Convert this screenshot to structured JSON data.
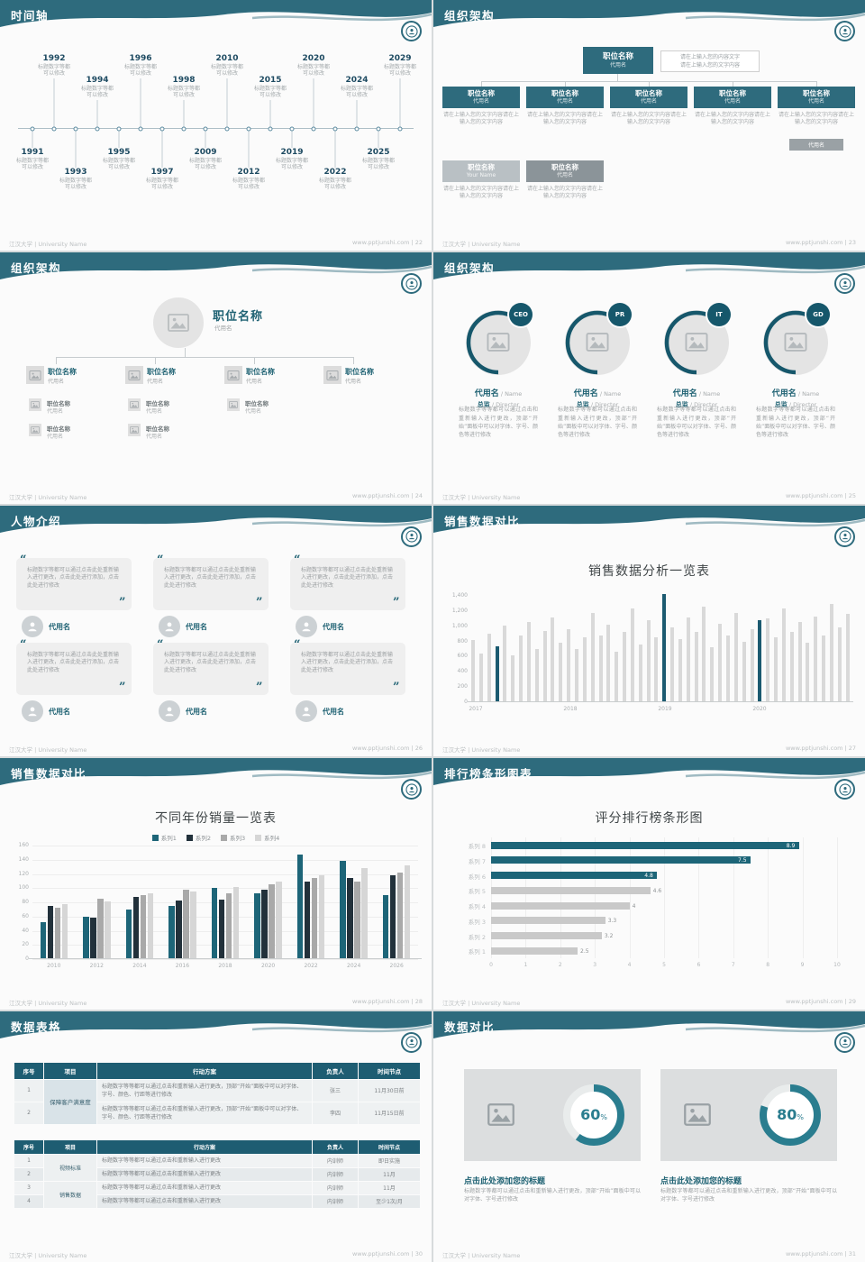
{
  "theme": {
    "header_teal": "#2e6b7d",
    "accent_teal": "#1f6273",
    "dark_navy": "#22313b",
    "gray_bar": "#d9d9d9",
    "table_header": "#1e5d72",
    "donut_teal": "#2a7d8f"
  },
  "footer": {
    "left": "江汉大学 | University Name",
    "site": "www.pptjunshi.com"
  },
  "slides": [
    {
      "id": "timeline",
      "title": "时间轴",
      "page": "22",
      "caption": "标题数字等都可以修改",
      "items": [
        {
          "year": "1991",
          "side": "below",
          "level": 1
        },
        {
          "year": "1992",
          "side": "above",
          "level": 1
        },
        {
          "year": "1993",
          "side": "below",
          "level": 2
        },
        {
          "year": "1994",
          "side": "above",
          "level": 2
        },
        {
          "year": "1995",
          "side": "below",
          "level": 1
        },
        {
          "year": "1996",
          "side": "above",
          "level": 1
        },
        {
          "year": "1997",
          "side": "below",
          "level": 2
        },
        {
          "year": "1998",
          "side": "above",
          "level": 2
        },
        {
          "year": "2009",
          "side": "below",
          "level": 1
        },
        {
          "year": "2010",
          "side": "above",
          "level": 1
        },
        {
          "year": "2012",
          "side": "below",
          "level": 2
        },
        {
          "year": "2015",
          "side": "above",
          "level": 2
        },
        {
          "year": "2019",
          "side": "below",
          "level": 1
        },
        {
          "year": "2020",
          "side": "above",
          "level": 1
        },
        {
          "year": "2022",
          "side": "below",
          "level": 2
        },
        {
          "year": "2024",
          "side": "above",
          "level": 2
        },
        {
          "year": "2025",
          "side": "below",
          "level": 1
        },
        {
          "year": "2029",
          "side": "above",
          "level": 1
        }
      ]
    },
    {
      "id": "org1",
      "title": "组织架构",
      "page": "23",
      "top_box": {
        "title": "职位名称",
        "subtitle": "代用名"
      },
      "note_lines": [
        "请在上输入您的内容文字",
        "请在上输入您的文字内容"
      ],
      "level1": [
        {
          "title": "职位名称",
          "subtitle": "代用名"
        },
        {
          "title": "职位名称",
          "subtitle": "代用名"
        },
        {
          "title": "职位名称",
          "subtitle": "代用名"
        },
        {
          "title": "职位名称",
          "subtitle": "代用名"
        },
        {
          "title": "职位名称",
          "subtitle": "代用名"
        }
      ],
      "caption": "请在上输入您的文字内容请在上输入您的文字内容",
      "mini_label": "代用名",
      "level2": [
        {
          "title": "职位名称",
          "subtitle": "Your Name"
        },
        {
          "title": "职位名称",
          "subtitle": "代用名"
        }
      ]
    },
    {
      "id": "org2",
      "title": "组织架构",
      "page": "24",
      "root": {
        "title": "职位名称",
        "subtitle": "代用名"
      },
      "branches": [
        {
          "title": "职位名称",
          "subtitle": "代用名",
          "subs": 2
        },
        {
          "title": "职位名称",
          "subtitle": "代用名",
          "subs": 2
        },
        {
          "title": "职位名称",
          "subtitle": "代用名",
          "subs": 1
        },
        {
          "title": "职位名称",
          "subtitle": "代用名",
          "subs": 0
        }
      ],
      "sub_item": {
        "title": "职位名称",
        "subtitle": "代用名"
      }
    },
    {
      "id": "org3",
      "title": "组织架构",
      "page": "25",
      "members": [
        {
          "badge": "CEO",
          "name": "代用名",
          "name_en": "/ Name",
          "role": "总监",
          "role_en": "/ Director",
          "desc": "标题数字等等都可以通过点击和重新输入进行更改，顶部“开始”面板中可以对字体、字号、颜色等进行修改"
        },
        {
          "badge": "PR",
          "name": "代用名",
          "name_en": "/ Name",
          "role": "总监",
          "role_en": "/ Director",
          "desc": "标题数字等等都可以通过点击和重新输入进行更改，顶部“开始”面板中可以对字体、字号、颜色等进行修改"
        },
        {
          "badge": "IT",
          "name": "代用名",
          "name_en": "/ Name",
          "role": "总监",
          "role_en": "/ Director",
          "desc": "标题数字等等都可以通过点击和重新输入进行更改，顶部“开始”面板中可以对字体、字号、颜色等进行修改"
        },
        {
          "badge": "GD",
          "name": "代用名",
          "name_en": "/ Name",
          "role": "总监",
          "role_en": "/ Director",
          "desc": "标题数字等等都可以通过点击和重新输入进行更改，顶部“开始”面板中可以对字体、字号、颜色等进行修改"
        }
      ]
    },
    {
      "id": "people",
      "title": "人物介绍",
      "page": "26",
      "quote_text": "标题数字等都可以通过点击此处重新输入进行更改，点击此处进行添加，点击此处进行修改",
      "cards": [
        {
          "name": "代用名"
        },
        {
          "name": "代用名"
        },
        {
          "name": "代用名"
        },
        {
          "name": "代用名"
        },
        {
          "name": "代用名"
        },
        {
          "name": "代用名"
        }
      ]
    },
    {
      "id": "chart1",
      "title": "销售数据对比",
      "page": "27",
      "chart": {
        "type": "bar",
        "title": "销售数据分析一览表",
        "x_labels": [
          "2017",
          "2018",
          "2019",
          "2020"
        ],
        "y_ticks": [
          "0",
          "200",
          "400",
          "600",
          "800",
          "1,000",
          "1,200",
          "1,400"
        ],
        "y_max": 1500,
        "bar_color": "#d9d9d9",
        "highlight_color": "#1b5a70",
        "highlight_indices": [
          3,
          24,
          36
        ],
        "values": [
          820,
          640,
          900,
          730,
          1010,
          620,
          880,
          1060,
          700,
          940,
          1120,
          780,
          960,
          700,
          850,
          1180,
          880,
          1020,
          660,
          920,
          1230,
          760,
          1080,
          860,
          1430,
          980,
          830,
          1120,
          930,
          1260,
          720,
          1030,
          880,
          1180,
          800,
          960,
          1080,
          1100,
          860,
          1230,
          930,
          1060,
          780,
          1130,
          880,
          1290,
          990,
          1160
        ]
      }
    },
    {
      "id": "chart2",
      "title": "销售数据对比",
      "page": "28",
      "chart": {
        "type": "bar-grouped",
        "title": "不同年份销量一览表",
        "categories": [
          "2010",
          "2012",
          "2014",
          "2016",
          "2018",
          "2020",
          "2022",
          "2024",
          "2026"
        ],
        "series_colors": [
          "#1d6578",
          "#22313b",
          "#a9a9a9",
          "#d6d6d6"
        ],
        "series": [
          {
            "name": "系列1",
            "values": [
              52,
              60,
              70,
              75,
              100,
              93,
              148,
              138,
              90
            ]
          },
          {
            "name": "系列2",
            "values": [
              75,
              58,
              88,
              83,
              84,
              98,
              110,
              115,
              118
            ]
          },
          {
            "name": "系列3",
            "values": [
              72,
              85,
              90,
              98,
              93,
              105,
              115,
              110,
              122
            ]
          },
          {
            "name": "系列4",
            "values": [
              78,
              82,
              93,
              96,
              102,
              110,
              118,
              128,
              132
            ]
          }
        ],
        "y_ticks": [
          0,
          20,
          40,
          60,
          80,
          100,
          120,
          140,
          160
        ],
        "y_max": 160
      }
    },
    {
      "id": "hbar",
      "title": "排行榜条形图表",
      "page": "29",
      "chart": {
        "type": "bar-horizontal",
        "title": "评分排行榜条形图",
        "categories": [
          "系列 8",
          "系列 7",
          "系列 6",
          "系列 5",
          "系列 4",
          "系列 3",
          "系列 2",
          "系列 1"
        ],
        "values": [
          8.9,
          7.5,
          4.8,
          4.6,
          4,
          3.3,
          3.2,
          2.5
        ],
        "teal_count": 3,
        "bar_color": "#1d6578",
        "gray_color": "#c9c9c9",
        "x_ticks": [
          0,
          1,
          2,
          3,
          4,
          5,
          6,
          7,
          8,
          9,
          10
        ],
        "x_max": 10
      }
    },
    {
      "id": "tables",
      "title": "数据表格",
      "page": "30",
      "table1": {
        "headers": [
          "序号",
          "项目",
          "行动方案",
          "负责人",
          "时间节点"
        ],
        "project": "保障客户满意度",
        "rows": [
          {
            "no": "1",
            "plan": "标题数字等等都可以通过点击和重新输入进行更改，顶部“开始”面板中可以对字体、字号、颜色、行距等进行修改",
            "owner": "张三",
            "time": "11月30日前"
          },
          {
            "no": "2",
            "plan": "标题数字等等都可以通过点击和重新输入进行更改，顶部“开始”面板中可以对字体、字号、颜色、行距等进行修改",
            "owner": "李四",
            "time": "11月15日前"
          }
        ]
      },
      "table2": {
        "headers": [
          "序号",
          "项目",
          "行动方案",
          "负责人",
          "时间节点"
        ],
        "groups": [
          {
            "name": "视频标准",
            "span": 2
          },
          {
            "name": "销售数据",
            "span": 2
          }
        ],
        "rows": [
          {
            "no": "1",
            "plan": "标题数字等等都可以通过点击和重新输入进行更改",
            "owner": "内训师",
            "time": "即日实施"
          },
          {
            "no": "2",
            "plan": "标题数字等等都可以通过点击和重新输入进行更改",
            "owner": "内训师",
            "time": "11月"
          },
          {
            "no": "3",
            "plan": "标题数字等等都可以通过点击和重新输入进行更改",
            "owner": "内训师",
            "time": "11月"
          },
          {
            "no": "4",
            "plan": "标题数字等等都可以通过点击和重新输入进行更改",
            "owner": "内训师",
            "time": "至少1次/月"
          }
        ]
      }
    },
    {
      "id": "compare",
      "title": "数据对比",
      "page": "31",
      "ring_color": "#2a7d8f",
      "items": [
        {
          "percent": 60,
          "title": "点击此处添加您的标题",
          "desc": "标题数字等都可以通过点击和重新输入进行更改，顶部“开始”面板中可以对字体、字号进行修改"
        },
        {
          "percent": 80,
          "title": "点击此处添加您的标题",
          "desc": "标题数字等都可以通过点击和重新输入进行更改，顶部“开始”面板中可以对字体、字号进行修改"
        }
      ]
    }
  ]
}
